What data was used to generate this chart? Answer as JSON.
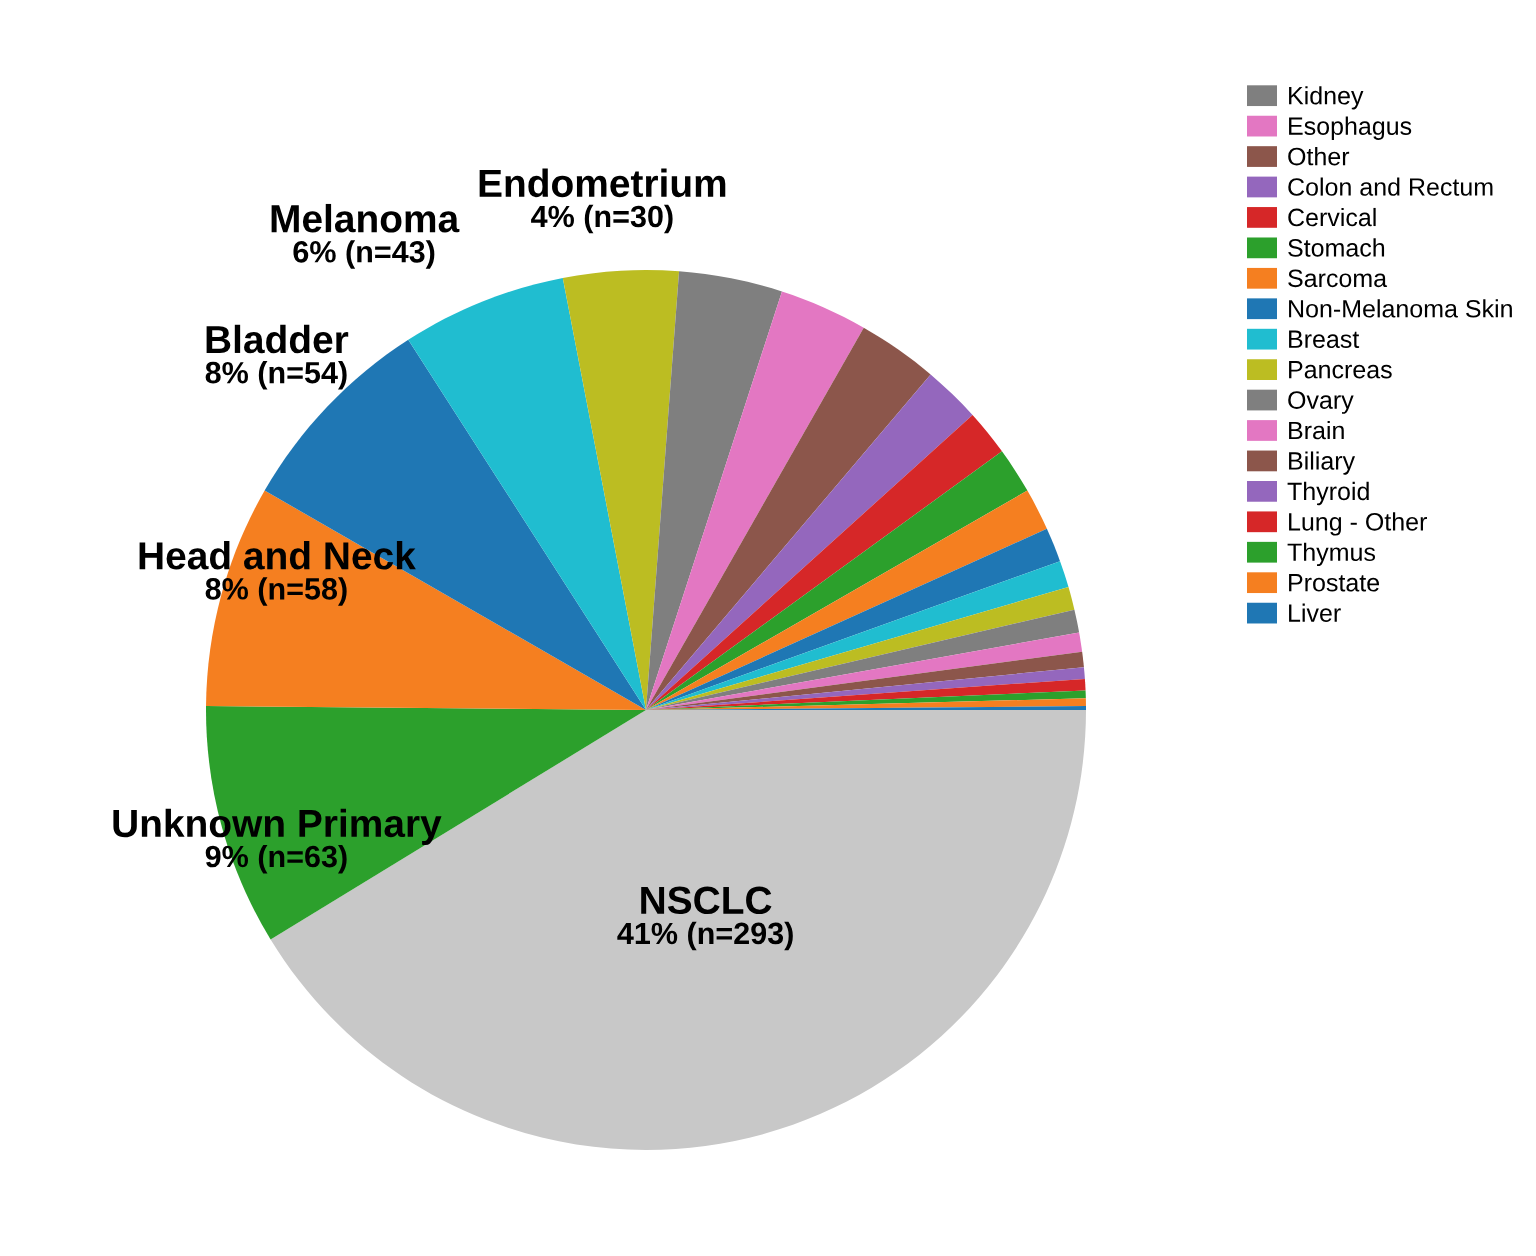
{
  "chart_data": {
    "type": "pie",
    "categories": [
      "NSCLC",
      "Unknown Primary",
      "Head and Neck",
      "Bladder",
      "Melanoma",
      "Endometrium",
      "Kidney",
      "Esophagus",
      "Other",
      "Colon and Rectum",
      "Cervical",
      "Stomach",
      "Sarcoma",
      "Non-Melanoma Skin",
      "Breast",
      "Pancreas",
      "Ovary",
      "Brain",
      "Biliary",
      "Thyroid",
      "Lung - Other",
      "Thymus",
      "Prostate",
      "Liver"
    ],
    "values": [
      293,
      63,
      58,
      54,
      43,
      30,
      27,
      23,
      21,
      15,
      12,
      12,
      11,
      9,
      7,
      6,
      6,
      5,
      4,
      3,
      3,
      2,
      2,
      1
    ],
    "value_labels": [
      "41% (n=293)",
      "9% (n=63)",
      "8% (n=58)",
      "8% (n=54)",
      "6% (n=43)",
      "4% (n=30)",
      null,
      null,
      null,
      null,
      null,
      null,
      null,
      null,
      null,
      null,
      null,
      null,
      null,
      null,
      null,
      null,
      null,
      null
    ],
    "colors": [
      "#c8c8c8",
      "#2ca02c",
      "#f57f20",
      "#1f77b4",
      "#20bdd0",
      "#bcbd22",
      "#7f7f7f",
      "#e377c2",
      "#8c564b",
      "#9467bd",
      "#d62728",
      "#2ca02c",
      "#f57f20",
      "#1f77b4",
      "#20bdd0",
      "#bcbd22",
      "#7f7f7f",
      "#e377c2",
      "#8c564b",
      "#9467bd",
      "#d62728",
      "#2ca02c",
      "#f57f20",
      "#1f77b4"
    ],
    "legend": "top right"
  }
}
